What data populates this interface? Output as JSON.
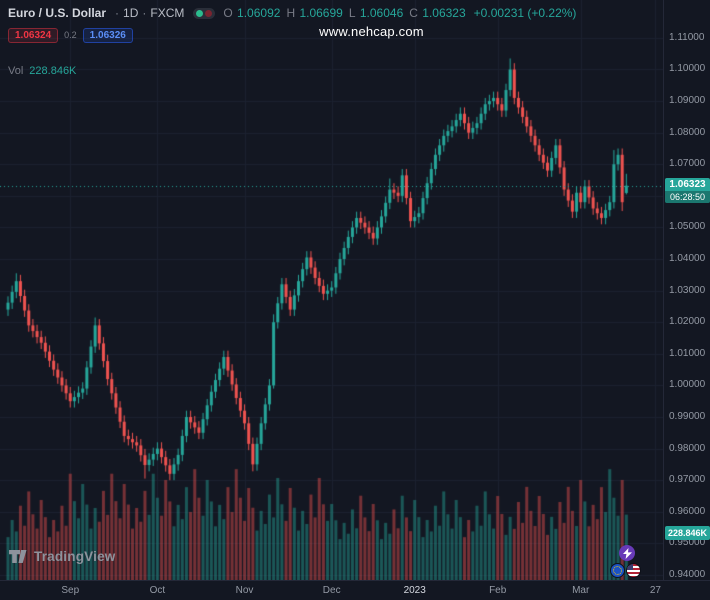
{
  "watermark": "www.nehcap.com",
  "header": {
    "symbol": "Euro / U.S. Dollar",
    "dot": "·",
    "interval": "1D",
    "exchange": "FXCM",
    "ohlc": {
      "o_label": "O",
      "o_value": "1.06092",
      "h_label": "H",
      "h_value": "1.06699",
      "l_label": "L",
      "l_value": "1.06046",
      "c_label": "C",
      "c_value": "1.06323",
      "change": "+0.00231 (+0.22%)"
    },
    "sell_price": "1.06324",
    "spread": "0.2",
    "buy_price": "1.06326",
    "volume_label": "Vol",
    "volume_value": "228.846K"
  },
  "price_axis": {
    "last_price": "1.06323",
    "countdown": "06:28:50",
    "volume_badge": "228.846K"
  },
  "footer": {
    "logo_text": "TradingView"
  },
  "colors": {
    "bg": "#131722",
    "grid": "#1b2130",
    "up": "#26a69a",
    "down": "#ef5350",
    "vol_up": "rgba(38,166,154,0.45)",
    "vol_down": "rgba(239,83,80,0.45)",
    "sell": "#f23645",
    "buy": "#2962ff",
    "badge": "#26a69a"
  },
  "chart_data": {
    "type": "candlestick",
    "title": "Euro / U.S. Dollar · 1D · FXCM",
    "interval": "1D",
    "ylim": [
      0.9384,
      1.122
    ],
    "price_ticks": [
      1.11,
      1.1,
      1.09,
      1.08,
      1.07,
      1.06,
      1.05,
      1.04,
      1.03,
      1.02,
      1.01,
      1.0,
      0.99,
      0.98,
      0.97,
      0.96,
      0.95,
      0.94
    ],
    "price_tick_labels": [
      {
        "v": 1.11,
        "t": "1.11000"
      },
      {
        "v": 1.1,
        "t": "1.10000"
      },
      {
        "v": 1.09,
        "t": "1.09000"
      },
      {
        "v": 1.08,
        "t": "1.08000"
      },
      {
        "v": 1.07,
        "t": "1.07000"
      },
      {
        "v": 1.05,
        "t": "1.05000"
      },
      {
        "v": 1.04,
        "t": "1.04000"
      },
      {
        "v": 1.03,
        "t": "1.03000"
      },
      {
        "v": 1.02,
        "t": "1.02000"
      },
      {
        "v": 1.01,
        "t": "1.01000"
      },
      {
        "v": 1.0,
        "t": "1.00000"
      },
      {
        "v": 0.99,
        "t": "0.99000"
      },
      {
        "v": 0.98,
        "t": "0.98000"
      },
      {
        "v": 0.97,
        "t": "0.97000"
      },
      {
        "v": 0.96,
        "t": "0.96000"
      },
      {
        "v": 0.95,
        "t": "0.95000"
      },
      {
        "v": 0.94,
        "t": "0.94000"
      }
    ],
    "x_ticks": [
      {
        "i": 15,
        "t": "Sep"
      },
      {
        "i": 36,
        "t": "Oct"
      },
      {
        "i": 57,
        "t": "Nov"
      },
      {
        "i": 78,
        "t": "Dec"
      },
      {
        "i": 98,
        "t": "2023",
        "em": true
      },
      {
        "i": 118,
        "t": "Feb"
      },
      {
        "i": 138,
        "t": "Mar"
      },
      {
        "i": 156,
        "t": "27"
      }
    ],
    "volume_scale_max": 420,
    "last": {
      "open": 1.06092,
      "high": 1.06699,
      "low": 1.06046,
      "close": 1.06323,
      "change": "+0.00231",
      "change_pct": "+0.22%",
      "volume": "228.846K"
    },
    "candles": [
      [
        1.024,
        1.0282,
        1.022,
        1.0262
      ],
      [
        1.0262,
        1.0316,
        1.0242,
        1.0296
      ],
      [
        1.0296,
        1.0355,
        1.0276,
        1.033
      ],
      [
        1.033,
        1.035,
        1.0263,
        1.0283
      ],
      [
        1.0283,
        1.0303,
        1.0217,
        1.0237
      ],
      [
        1.0237,
        1.0257,
        1.017,
        1.019
      ],
      [
        1.019,
        1.021,
        1.0152,
        1.0172
      ],
      [
        1.0172,
        1.0192,
        1.0133,
        1.0153
      ],
      [
        1.0153,
        1.0173,
        1.0115,
        1.0135
      ],
      [
        1.0135,
        1.0155,
        1.0087,
        1.0107
      ],
      [
        1.0107,
        1.0127,
        1.0058,
        1.0078
      ],
      [
        1.0078,
        1.0098,
        1.003,
        1.005
      ],
      [
        1.005,
        1.007,
        1.0005,
        1.0025
      ],
      [
        1.0025,
        1.0045,
        0.998,
        1.0
      ],
      [
        1.0,
        1.002,
        0.9955,
        0.9975
      ],
      [
        0.9975,
        0.9995,
        0.993,
        0.995
      ],
      [
        0.995,
        0.9983,
        0.993,
        0.9963
      ],
      [
        0.9963,
        0.9997,
        0.9943,
        0.9977
      ],
      [
        0.9977,
        1.001,
        0.9957,
        0.999
      ],
      [
        0.999,
        1.0077,
        0.997,
        1.0057
      ],
      [
        1.0057,
        1.0143,
        1.0037,
        1.0123
      ],
      [
        1.0123,
        1.0215,
        1.0103,
        1.019
      ],
      [
        1.019,
        1.021,
        1.0113,
        1.0133
      ],
      [
        1.0133,
        1.0153,
        1.0057,
        1.0077
      ],
      [
        1.0077,
        1.0097,
        1.0,
        1.002
      ],
      [
        1.002,
        1.004,
        0.9955,
        0.9975
      ],
      [
        0.9975,
        0.9995,
        0.991,
        0.993
      ],
      [
        0.993,
        0.995,
        0.9865,
        0.9885
      ],
      [
        0.9885,
        0.9905,
        0.982,
        0.984
      ],
      [
        0.984,
        0.986,
        0.981,
        0.983
      ],
      [
        0.983,
        0.985,
        0.98,
        0.982
      ],
      [
        0.982,
        0.984,
        0.979,
        0.981
      ],
      [
        0.981,
        0.983,
        0.9759,
        0.9779
      ],
      [
        0.9779,
        0.9799,
        0.9705,
        0.9748
      ],
      [
        0.9748,
        0.9785,
        0.9728,
        0.9765
      ],
      [
        0.9765,
        0.9803,
        0.9745,
        0.9783
      ],
      [
        0.9783,
        0.982,
        0.9763,
        0.98
      ],
      [
        0.98,
        0.982,
        0.9753,
        0.9773
      ],
      [
        0.9773,
        0.9793,
        0.9727,
        0.9747
      ],
      [
        0.9747,
        0.9767,
        0.97,
        0.972
      ],
      [
        0.972,
        0.977,
        0.97,
        0.975
      ],
      [
        0.975,
        0.98,
        0.973,
        0.978
      ],
      [
        0.978,
        0.986,
        0.976,
        0.984
      ],
      [
        0.984,
        0.992,
        0.982,
        0.99
      ],
      [
        0.99,
        0.992,
        0.9863,
        0.9883
      ],
      [
        0.9883,
        0.9903,
        0.9847,
        0.9867
      ],
      [
        0.9867,
        0.9887,
        0.983,
        0.985
      ],
      [
        0.985,
        0.9913,
        0.983,
        0.9893
      ],
      [
        0.9893,
        0.9957,
        0.9873,
        0.9937
      ],
      [
        0.9937,
        1.0,
        0.9917,
        0.998
      ],
      [
        0.998,
        1.0037,
        0.996,
        1.0017
      ],
      [
        1.0017,
        1.0073,
        0.9997,
        1.0053
      ],
      [
        1.0053,
        1.011,
        1.0033,
        1.009
      ],
      [
        1.009,
        1.011,
        1.0027,
        1.0047
      ],
      [
        1.0047,
        1.0067,
        0.9983,
        1.0003
      ],
      [
        1.0003,
        1.0023,
        0.994,
        0.996
      ],
      [
        0.996,
        0.998,
        0.99,
        0.992
      ],
      [
        0.992,
        0.994,
        0.986,
        0.988
      ],
      [
        0.988,
        0.99,
        0.9795,
        0.9815
      ],
      [
        0.9815,
        0.9835,
        0.9728,
        0.975
      ],
      [
        0.975,
        0.9835,
        0.973,
        0.9815
      ],
      [
        0.9815,
        0.99,
        0.9795,
        0.988
      ],
      [
        0.988,
        0.996,
        0.986,
        0.994
      ],
      [
        0.994,
        1.002,
        0.992,
        1.0
      ],
      [
        1.0,
        1.0225,
        0.999,
        1.02
      ],
      [
        1.02,
        1.028,
        1.018,
        1.026
      ],
      [
        1.026,
        1.034,
        1.024,
        1.032
      ],
      [
        1.032,
        1.034,
        1.026,
        1.028
      ],
      [
        1.028,
        1.03,
        1.022,
        1.024
      ],
      [
        1.024,
        1.0305,
        1.022,
        1.0285
      ],
      [
        1.0285,
        1.035,
        1.0265,
        1.033
      ],
      [
        1.033,
        1.0388,
        1.031,
        1.0368
      ],
      [
        1.0368,
        1.0425,
        1.0348,
        1.0405
      ],
      [
        1.0405,
        1.0425,
        1.0353,
        1.0373
      ],
      [
        1.0373,
        1.0393,
        1.032,
        1.034
      ],
      [
        1.034,
        1.036,
        1.0295,
        1.0315
      ],
      [
        1.0315,
        1.0335,
        1.027,
        1.029
      ],
      [
        1.029,
        1.032,
        1.027,
        1.03
      ],
      [
        1.03,
        1.033,
        1.028,
        1.031
      ],
      [
        1.031,
        1.0375,
        1.029,
        1.0355
      ],
      [
        1.0355,
        1.042,
        1.0335,
        1.04
      ],
      [
        1.04,
        1.0455,
        1.038,
        1.0435
      ],
      [
        1.0435,
        1.049,
        1.0415,
        1.047
      ],
      [
        1.047,
        1.052,
        1.045,
        1.05
      ],
      [
        1.05,
        1.055,
        1.048,
        1.053
      ],
      [
        1.053,
        1.055,
        1.0495,
        1.0515
      ],
      [
        1.0515,
        1.0535,
        1.048,
        1.05
      ],
      [
        1.05,
        1.052,
        1.0463,
        1.0483
      ],
      [
        1.0483,
        1.0503,
        1.0445,
        1.0465
      ],
      [
        1.0465,
        1.052,
        1.0445,
        1.05
      ],
      [
        1.05,
        1.0555,
        1.048,
        1.0535
      ],
      [
        1.0535,
        1.0598,
        1.0515,
        1.0578
      ],
      [
        1.0578,
        1.0655,
        1.0558,
        1.062
      ],
      [
        1.062,
        1.064,
        1.059,
        1.061
      ],
      [
        1.061,
        1.063,
        1.058,
        1.06
      ],
      [
        1.06,
        1.0685,
        1.058,
        1.0665
      ],
      [
        1.0665,
        1.0685,
        1.0573,
        1.0593
      ],
      [
        1.0593,
        1.0613,
        1.05,
        1.052
      ],
      [
        1.052,
        1.0553,
        1.05,
        1.0533
      ],
      [
        1.0533,
        1.0565,
        1.0513,
        1.0545
      ],
      [
        1.0545,
        1.0613,
        1.0525,
        1.0593
      ],
      [
        1.0593,
        1.066,
        1.0573,
        1.064
      ],
      [
        1.064,
        1.0705,
        1.062,
        1.0685
      ],
      [
        1.0685,
        1.075,
        1.0665,
        1.073
      ],
      [
        1.073,
        1.078,
        1.071,
        1.076
      ],
      [
        1.076,
        1.081,
        1.074,
        1.079
      ],
      [
        1.079,
        1.0825,
        1.077,
        1.0805
      ],
      [
        1.0805,
        1.084,
        1.0785,
        1.082
      ],
      [
        1.082,
        1.086,
        1.08,
        1.084
      ],
      [
        1.084,
        1.088,
        1.082,
        1.086
      ],
      [
        1.086,
        1.088,
        1.081,
        1.083
      ],
      [
        1.083,
        1.085,
        1.078,
        1.08
      ],
      [
        1.08,
        1.0835,
        1.078,
        1.0815
      ],
      [
        1.0815,
        1.085,
        1.0795,
        1.083
      ],
      [
        1.083,
        1.088,
        1.081,
        1.086
      ],
      [
        1.086,
        1.091,
        1.084,
        1.089
      ],
      [
        1.089,
        1.092,
        1.087,
        1.09
      ],
      [
        1.09,
        1.093,
        1.088,
        1.091
      ],
      [
        1.091,
        1.093,
        1.087,
        1.089
      ],
      [
        1.089,
        1.091,
        1.085,
        1.087
      ],
      [
        1.087,
        1.0955,
        1.085,
        1.0935
      ],
      [
        1.0935,
        1.1035,
        1.0915,
        1.1
      ],
      [
        1.1,
        1.102,
        1.089,
        1.091
      ],
      [
        1.091,
        1.093,
        1.086,
        1.088
      ],
      [
        1.088,
        1.09,
        1.083,
        1.085
      ],
      [
        1.085,
        1.087,
        1.08,
        1.082
      ],
      [
        1.082,
        1.084,
        1.077,
        1.079
      ],
      [
        1.079,
        1.081,
        1.074,
        1.076
      ],
      [
        1.076,
        1.078,
        1.071,
        1.073
      ],
      [
        1.073,
        1.075,
        1.0685,
        1.0705
      ],
      [
        1.0705,
        1.0725,
        1.066,
        1.068
      ],
      [
        1.068,
        1.074,
        1.066,
        1.072
      ],
      [
        1.072,
        1.078,
        1.07,
        1.076
      ],
      [
        1.076,
        1.078,
        1.067,
        1.069
      ],
      [
        1.069,
        1.071,
        1.06,
        1.062
      ],
      [
        1.062,
        1.064,
        1.0565,
        1.0585
      ],
      [
        1.0585,
        1.0605,
        1.053,
        1.055
      ],
      [
        1.055,
        1.063,
        1.053,
        1.061
      ],
      [
        1.061,
        1.063,
        1.056,
        1.058
      ],
      [
        1.058,
        1.065,
        1.056,
        1.063
      ],
      [
        1.063,
        1.065,
        1.0575,
        1.0595
      ],
      [
        1.0595,
        1.0615,
        1.054,
        1.056
      ],
      [
        1.056,
        1.058,
        1.0525,
        1.0545
      ],
      [
        1.0545,
        1.0565,
        1.051,
        1.053
      ],
      [
        1.053,
        1.0575,
        1.051,
        1.0555
      ],
      [
        1.0555,
        1.06,
        1.0535,
        1.058
      ],
      [
        1.058,
        1.0745,
        1.056,
        1.07
      ],
      [
        1.07,
        1.075,
        1.068,
        1.073
      ],
      [
        1.073,
        1.075,
        1.0552,
        1.058
      ],
      [
        1.06092,
        1.06699,
        1.06046,
        1.06323
      ]
    ],
    "volumes": [
      150,
      210,
      170,
      260,
      190,
      310,
      230,
      180,
      280,
      220,
      150,
      210,
      170,
      260,
      190,
      372,
      276,
      216,
      336,
      264,
      180,
      252,
      204,
      312,
      228,
      372,
      276,
      216,
      336,
      264,
      180,
      252,
      204,
      312,
      228,
      372,
      288,
      225,
      350,
      275,
      188,
      263,
      213,
      325,
      238,
      388,
      288,
      225,
      350,
      275,
      188,
      263,
      213,
      325,
      238,
      388,
      288,
      207,
      322,
      253,
      173,
      242,
      196,
      299,
      219,
      357,
      265,
      207,
      322,
      253,
      173,
      242,
      196,
      299,
      219,
      357,
      265,
      207,
      266,
      209,
      143,
      200,
      162,
      247,
      181,
      295,
      219,
      171,
      266,
      209,
      143,
      200,
      162,
      247,
      181,
      295,
      219,
      171,
      280,
      220,
      150,
      210,
      170,
      260,
      190,
      310,
      230,
      180,
      280,
      220,
      150,
      210,
      170,
      260,
      190,
      310,
      230,
      180,
      294,
      231,
      158,
      221,
      179,
      273,
      200,
      326,
      242,
      189,
      294,
      231,
      158,
      221,
      179,
      273,
      200,
      326,
      242,
      189,
      350,
      275,
      188,
      263,
      213,
      325,
      238,
      388,
      288,
      225,
      350,
      228.846
    ]
  }
}
